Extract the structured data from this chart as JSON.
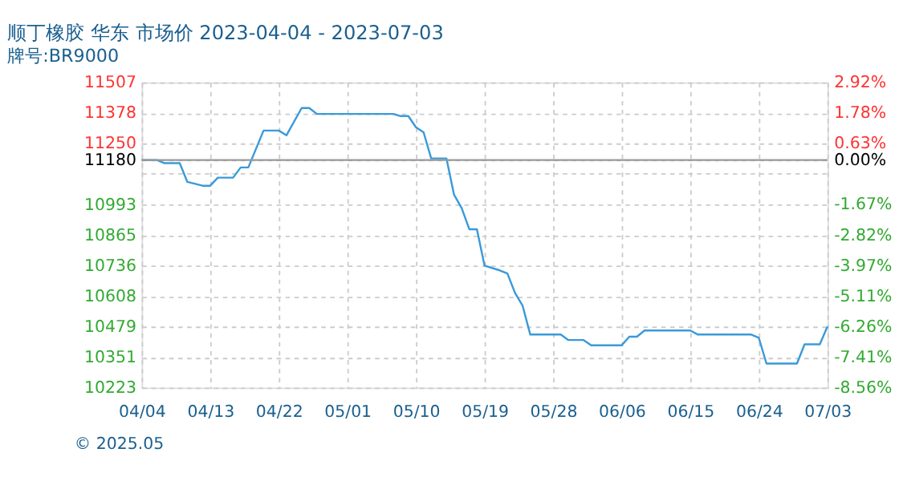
{
  "chart_data": {
    "type": "line",
    "title": "顺丁橡胶 华东 市场价 2023-04-04 - 2023-07-03",
    "subtitle": "牌号:BR9000",
    "annotations": [
      "© 2025.05"
    ],
    "x": [
      "2023-04-04",
      "2023-04-06",
      "2023-04-07",
      "2023-04-09",
      "2023-04-10",
      "2023-04-12",
      "2023-04-13",
      "2023-04-14",
      "2023-04-16",
      "2023-04-17",
      "2023-04-18",
      "2023-04-20",
      "2023-04-22",
      "2023-04-23",
      "2023-04-25",
      "2023-04-26",
      "2023-04-27",
      "2023-05-07",
      "2023-05-08",
      "2023-05-09",
      "2023-05-10",
      "2023-05-11",
      "2023-05-12",
      "2023-05-14",
      "2023-05-15",
      "2023-05-16",
      "2023-05-17",
      "2023-05-18",
      "2023-05-19",
      "2023-05-21",
      "2023-05-22",
      "2023-05-23",
      "2023-05-24",
      "2023-05-25",
      "2023-05-29",
      "2023-05-30",
      "2023-06-01",
      "2023-06-02",
      "2023-06-06",
      "2023-06-07",
      "2023-06-08",
      "2023-06-09",
      "2023-06-15",
      "2023-06-16",
      "2023-06-23",
      "2023-06-24",
      "2023-06-25",
      "2023-06-29",
      "2023-06-30",
      "2023-07-02",
      "2023-07-03"
    ],
    "series": [
      {
        "color": "#3a9ad9",
        "values": [
          11180,
          11180,
          11167,
          11167,
          11088,
          11072,
          11072,
          11106,
          11106,
          11149,
          11149,
          11304,
          11304,
          11284,
          11399,
          11399,
          11374,
          11374,
          11365,
          11365,
          11318,
          11297,
          11187,
          11187,
          11034,
          10978,
          10889,
          10889,
          10736,
          10716,
          10703,
          10621,
          10567,
          10446,
          10446,
          10423,
          10423,
          10401,
          10401,
          10437,
          10437,
          10463,
          10463,
          10446,
          10446,
          10432,
          10324,
          10324,
          10405,
          10405,
          10480
        ]
      }
    ],
    "xlim": [
      "2023-04-04",
      "2023-07-03"
    ],
    "xticks": [
      {
        "value": "2023-04-04",
        "label": "04/04"
      },
      {
        "value": "2023-04-13",
        "label": "04/13"
      },
      {
        "value": "2023-04-22",
        "label": "04/22"
      },
      {
        "value": "2023-05-01",
        "label": "05/01"
      },
      {
        "value": "2023-05-10",
        "label": "05/10"
      },
      {
        "value": "2023-05-19",
        "label": "05/19"
      },
      {
        "value": "2023-05-28",
        "label": "05/28"
      },
      {
        "value": "2023-06-06",
        "label": "06/06"
      },
      {
        "value": "2023-06-15",
        "label": "06/15"
      },
      {
        "value": "2023-06-24",
        "label": "06/24"
      },
      {
        "value": "2023-07-03",
        "label": "07/03"
      }
    ],
    "ylim": [
      10223,
      11507
    ],
    "yticks": [
      10223,
      10351,
      10479,
      10608,
      10736,
      10865,
      10993,
      {
        "value": 11122,
        "label": null
      },
      11180,
      11250,
      11378,
      11507
    ],
    "y2lim": [
      -8.56,
      2.92
    ],
    "y2ticks": [
      {
        "value": -8.56,
        "label": "-8.56%"
      },
      {
        "value": -7.41,
        "label": "-7.41%"
      },
      {
        "value": -6.26,
        "label": "-6.26%"
      },
      {
        "value": -5.11,
        "label": "-5.11%"
      },
      {
        "value": -3.97,
        "label": "-3.97%"
      },
      {
        "value": -2.82,
        "label": "-2.82%"
      },
      {
        "value": -1.67,
        "label": "-1.67%"
      },
      {
        "value": 0.0,
        "label": "0.00%"
      },
      {
        "value": 0.63,
        "label": "0.63%"
      },
      {
        "value": 1.78,
        "label": "1.78%"
      },
      {
        "value": 2.92,
        "label": "2.92%"
      }
    ],
    "ref_lines": [
      {
        "axis": "y",
        "value": 11180,
        "color": "#999999",
        "line_style": "solid"
      }
    ],
    "grid": true,
    "legend": false,
    "marker": "none",
    "line_style": "solid"
  }
}
